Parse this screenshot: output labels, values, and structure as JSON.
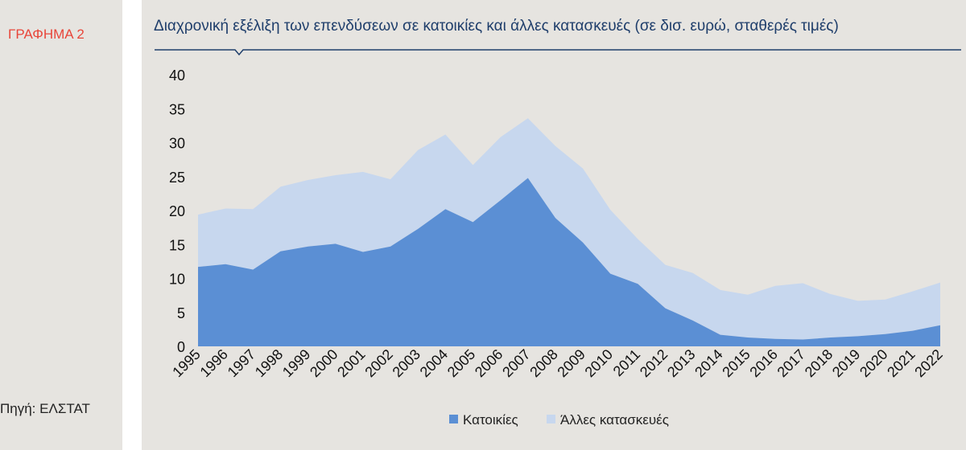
{
  "figure_label": "ΓΡΑΦΗΜΑ 2",
  "source": "Πηγή: ΕΛΣΤΑΤ",
  "colors": {
    "housing": "#5B8FD4",
    "other": "#C7D7EE",
    "title": "#1F3E6B",
    "label": "#E8463A"
  },
  "chart_data": {
    "type": "area",
    "stacked": true,
    "title": "Διαχρονική εξέλιξη των επενδύσεων σε κατοικίες και άλλες κατασκευές (σε δισ. ευρώ, σταθερές τιμές)",
    "xlabel": "",
    "ylabel": "",
    "ylim": [
      0,
      40
    ],
    "yticks": [
      0,
      5,
      10,
      15,
      20,
      25,
      30,
      35,
      40
    ],
    "grid": false,
    "legend_position": "bottom",
    "categories": [
      "1995",
      "1996",
      "1997",
      "1998",
      "1999",
      "2000",
      "2001",
      "2002",
      "2003",
      "2004",
      "2005",
      "2006",
      "2007",
      "2008",
      "2009",
      "2010",
      "2011",
      "2012",
      "2013",
      "2014",
      "2015",
      "2016",
      "2017",
      "2018",
      "2019",
      "2020",
      "2021",
      "2022"
    ],
    "series": [
      {
        "name": "Κατοικίες",
        "values": [
          11.7,
          12.1,
          11.3,
          14.0,
          14.7,
          15.1,
          13.9,
          14.7,
          17.3,
          20.2,
          18.3,
          21.5,
          24.8,
          18.9,
          15.3,
          10.7,
          9.2,
          5.6,
          3.8,
          1.7,
          1.3,
          1.1,
          1.0,
          1.3,
          1.5,
          1.8,
          2.3,
          3.1
        ]
      },
      {
        "name": "Άλλες κατασκευές",
        "values": [
          7.7,
          8.2,
          8.9,
          9.5,
          9.8,
          10.1,
          11.8,
          9.9,
          11.6,
          11.0,
          8.4,
          9.3,
          8.8,
          10.6,
          10.9,
          9.4,
          6.6,
          6.4,
          7.0,
          6.6,
          6.3,
          7.8,
          8.3,
          6.4,
          5.2,
          5.1,
          5.8,
          6.3
        ]
      }
    ]
  }
}
